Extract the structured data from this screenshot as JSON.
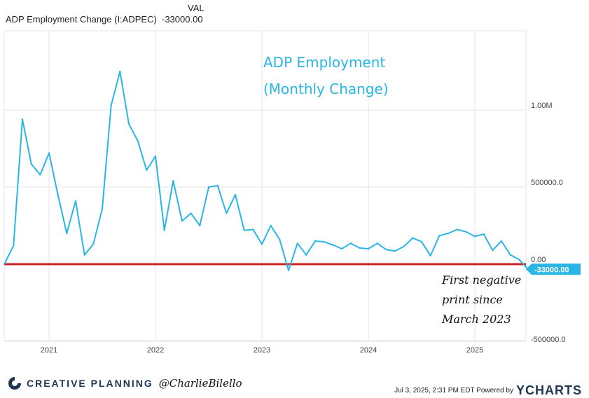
{
  "legend": {
    "column_header": "VAL",
    "series_name": "ADP Employment Change (I:ADPEC)",
    "series_value": "-33000.00"
  },
  "chart_data": {
    "type": "line",
    "title": "ADP Employment (Monthly Change)",
    "title_line1": "ADP Employment",
    "title_line2": "(Monthly Change)",
    "xlabel": "",
    "ylabel": "",
    "ylim": [
      -500000,
      1500000
    ],
    "x_tick_labels": [
      "2021",
      "2022",
      "2023",
      "2024",
      "2025"
    ],
    "y_tick_labels": [
      "1.00M",
      "500000.0",
      "0.00",
      "-500000.0"
    ],
    "y_tick_values": [
      1000000,
      500000,
      0,
      -500000
    ],
    "reference_line": {
      "value": 0,
      "color": "#cc2222"
    },
    "last_value_label": "-33000.00",
    "annotation_lines": [
      "First negative",
      "print since",
      "March 2023"
    ],
    "series": [
      {
        "name": "ADP Employment Change (I:ADPEC)",
        "color": "#29b6e6",
        "points": [
          [
            "2020-08",
            5000
          ],
          [
            "2020-09",
            120000
          ],
          [
            "2020-10",
            940000
          ],
          [
            "2020-11",
            650000
          ],
          [
            "2020-12",
            580000
          ],
          [
            "2021-01",
            720000
          ],
          [
            "2021-02",
            450000
          ],
          [
            "2021-03",
            200000
          ],
          [
            "2021-04",
            410000
          ],
          [
            "2021-05",
            60000
          ],
          [
            "2021-06",
            130000
          ],
          [
            "2021-07",
            360000
          ],
          [
            "2021-08",
            1030000
          ],
          [
            "2021-09",
            1250000
          ],
          [
            "2021-10",
            910000
          ],
          [
            "2021-11",
            800000
          ],
          [
            "2021-12",
            610000
          ],
          [
            "2022-01",
            700000
          ],
          [
            "2022-02",
            220000
          ],
          [
            "2022-03",
            540000
          ],
          [
            "2022-04",
            280000
          ],
          [
            "2022-05",
            330000
          ],
          [
            "2022-06",
            250000
          ],
          [
            "2022-07",
            500000
          ],
          [
            "2022-08",
            510000
          ],
          [
            "2022-09",
            330000
          ],
          [
            "2022-10",
            450000
          ],
          [
            "2022-11",
            220000
          ],
          [
            "2022-12",
            225000
          ],
          [
            "2023-01",
            130000
          ],
          [
            "2023-02",
            250000
          ],
          [
            "2023-03",
            160000
          ],
          [
            "2023-04",
            -40000
          ],
          [
            "2023-05",
            135000
          ],
          [
            "2023-06",
            60000
          ],
          [
            "2023-07",
            150000
          ],
          [
            "2023-08",
            145000
          ],
          [
            "2023-09",
            125000
          ],
          [
            "2023-10",
            100000
          ],
          [
            "2023-11",
            135000
          ],
          [
            "2023-12",
            105000
          ],
          [
            "2024-01",
            100000
          ],
          [
            "2024-02",
            135000
          ],
          [
            "2024-03",
            95000
          ],
          [
            "2024-04",
            85000
          ],
          [
            "2024-05",
            115000
          ],
          [
            "2024-06",
            170000
          ],
          [
            "2024-07",
            145000
          ],
          [
            "2024-08",
            55000
          ],
          [
            "2024-09",
            185000
          ],
          [
            "2024-10",
            200000
          ],
          [
            "2024-11",
            225000
          ],
          [
            "2024-12",
            210000
          ],
          [
            "2025-01",
            180000
          ],
          [
            "2025-02",
            195000
          ],
          [
            "2025-03",
            90000
          ],
          [
            "2025-04",
            150000
          ],
          [
            "2025-05",
            60000
          ],
          [
            "2025-06",
            30000
          ],
          [
            "2025-07",
            -33000
          ]
        ]
      }
    ]
  },
  "footer": {
    "brand": "CREATIVE PLANNING",
    "handle": "@CharlieBilello",
    "timestamp": "Jul 3, 2025, 2:31 PM EDT Powered by",
    "logo": "YCHARTS"
  },
  "colors": {
    "line": "#29b6e6",
    "zero_line": "#cc2222",
    "value_tag": "#29b6e6",
    "brand": "#1e3550"
  }
}
